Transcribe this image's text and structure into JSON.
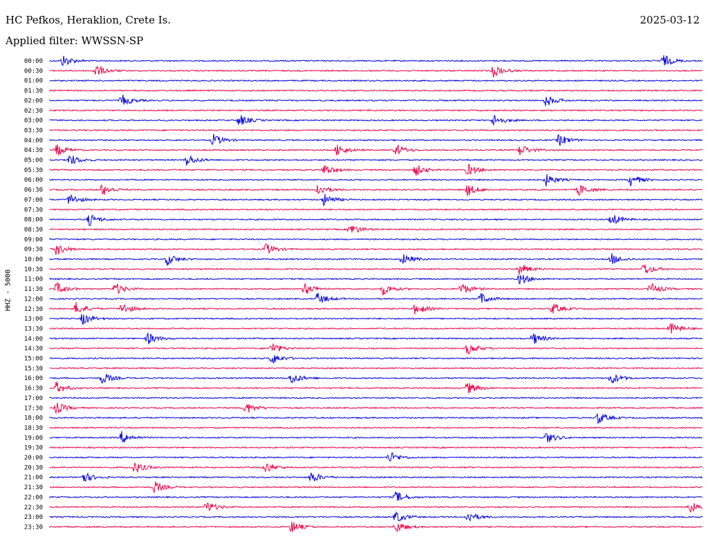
{
  "header": {
    "station": "HC Pefkos, Heraklion, Crete Is.",
    "filter": "Applied filter: WWSSN-SP",
    "date": "2025-03-12",
    "channel_label": "HHZ - 5000"
  },
  "colors": {
    "even_trace": "#0000dd",
    "odd_trace": "#ee0044"
  },
  "chart_data": {
    "type": "line",
    "title": "HC Pefkos, Heraklion, Crete Is.",
    "subtitle": "Applied filter: WWSSN-SP",
    "ylabel": "HHZ - 5000",
    "xlabel": "",
    "row_labels": [
      "00:00",
      "00:30",
      "01:00",
      "01:30",
      "02:00",
      "02:30",
      "03:00",
      "03:30",
      "04:00",
      "04:30",
      "05:00",
      "05:30",
      "06:00",
      "06:30",
      "07:00",
      "07:30",
      "08:00",
      "08:30",
      "09:00",
      "09:30",
      "10:00",
      "10:30",
      "11:00",
      "11:30",
      "12:00",
      "12:30",
      "13:00",
      "13:30",
      "14:00",
      "14:30",
      "15:00",
      "15:30",
      "16:00",
      "16:30",
      "17:00",
      "17:30",
      "18:00",
      "18:30",
      "19:00",
      "19:30",
      "20:00",
      "20:30",
      "21:00",
      "21:30",
      "22:00",
      "22:30",
      "23:00",
      "23:30"
    ],
    "row_duration_min": 30,
    "grid": false,
    "events": [
      {
        "row": 0,
        "t": 0.02
      },
      {
        "row": 0,
        "t": 0.94
      },
      {
        "row": 1,
        "t": 0.07
      },
      {
        "row": 1,
        "t": 0.68
      },
      {
        "row": 4,
        "t": 0.11
      },
      {
        "row": 4,
        "t": 0.76
      },
      {
        "row": 6,
        "t": 0.29
      },
      {
        "row": 6,
        "t": 0.68
      },
      {
        "row": 8,
        "t": 0.25
      },
      {
        "row": 8,
        "t": 0.78
      },
      {
        "row": 9,
        "t": 0.01
      },
      {
        "row": 9,
        "t": 0.44
      },
      {
        "row": 9,
        "t": 0.53
      },
      {
        "row": 9,
        "t": 0.72
      },
      {
        "row": 10,
        "t": 0.03
      },
      {
        "row": 10,
        "t": 0.21
      },
      {
        "row": 11,
        "t": 0.42
      },
      {
        "row": 11,
        "t": 0.56
      },
      {
        "row": 11,
        "t": 0.64
      },
      {
        "row": 12,
        "t": 0.76
      },
      {
        "row": 12,
        "t": 0.89
      },
      {
        "row": 13,
        "t": 0.08
      },
      {
        "row": 13,
        "t": 0.41
      },
      {
        "row": 13,
        "t": 0.64
      },
      {
        "row": 13,
        "t": 0.81
      },
      {
        "row": 14,
        "t": 0.03
      },
      {
        "row": 14,
        "t": 0.42
      },
      {
        "row": 16,
        "t": 0.06
      },
      {
        "row": 16,
        "t": 0.86
      },
      {
        "row": 17,
        "t": 0.46
      },
      {
        "row": 19,
        "t": 0.01
      },
      {
        "row": 19,
        "t": 0.33
      },
      {
        "row": 20,
        "t": 0.18
      },
      {
        "row": 20,
        "t": 0.54
      },
      {
        "row": 20,
        "t": 0.86
      },
      {
        "row": 21,
        "t": 0.72
      },
      {
        "row": 21,
        "t": 0.91
      },
      {
        "row": 22,
        "t": 0.72
      },
      {
        "row": 23,
        "t": 0.01
      },
      {
        "row": 23,
        "t": 0.1
      },
      {
        "row": 23,
        "t": 0.39
      },
      {
        "row": 23,
        "t": 0.51
      },
      {
        "row": 23,
        "t": 0.63
      },
      {
        "row": 23,
        "t": 0.92
      },
      {
        "row": 24,
        "t": 0.41
      },
      {
        "row": 24,
        "t": 0.66
      },
      {
        "row": 25,
        "t": 0.04
      },
      {
        "row": 25,
        "t": 0.11
      },
      {
        "row": 25,
        "t": 0.56
      },
      {
        "row": 25,
        "t": 0.77
      },
      {
        "row": 26,
        "t": 0.05
      },
      {
        "row": 27,
        "t": 0.95
      },
      {
        "row": 28,
        "t": 0.15
      },
      {
        "row": 28,
        "t": 0.74
      },
      {
        "row": 29,
        "t": 0.34
      },
      {
        "row": 29,
        "t": 0.64
      },
      {
        "row": 30,
        "t": 0.34
      },
      {
        "row": 32,
        "t": 0.08
      },
      {
        "row": 32,
        "t": 0.37
      },
      {
        "row": 32,
        "t": 0.86
      },
      {
        "row": 33,
        "t": 0.01
      },
      {
        "row": 33,
        "t": 0.64
      },
      {
        "row": 35,
        "t": 0.01
      },
      {
        "row": 35,
        "t": 0.3
      },
      {
        "row": 36,
        "t": 0.84
      },
      {
        "row": 38,
        "t": 0.11
      },
      {
        "row": 38,
        "t": 0.76
      },
      {
        "row": 40,
        "t": 0.52
      },
      {
        "row": 41,
        "t": 0.13
      },
      {
        "row": 41,
        "t": 0.33
      },
      {
        "row": 42,
        "t": 0.05
      },
      {
        "row": 42,
        "t": 0.4
      },
      {
        "row": 43,
        "t": 0.16
      },
      {
        "row": 44,
        "t": 0.53
      },
      {
        "row": 45,
        "t": 0.24
      },
      {
        "row": 45,
        "t": 0.98
      },
      {
        "row": 46,
        "t": 0.53
      },
      {
        "row": 46,
        "t": 0.64
      },
      {
        "row": 47,
        "t": 0.37
      },
      {
        "row": 47,
        "t": 0.53
      }
    ]
  }
}
